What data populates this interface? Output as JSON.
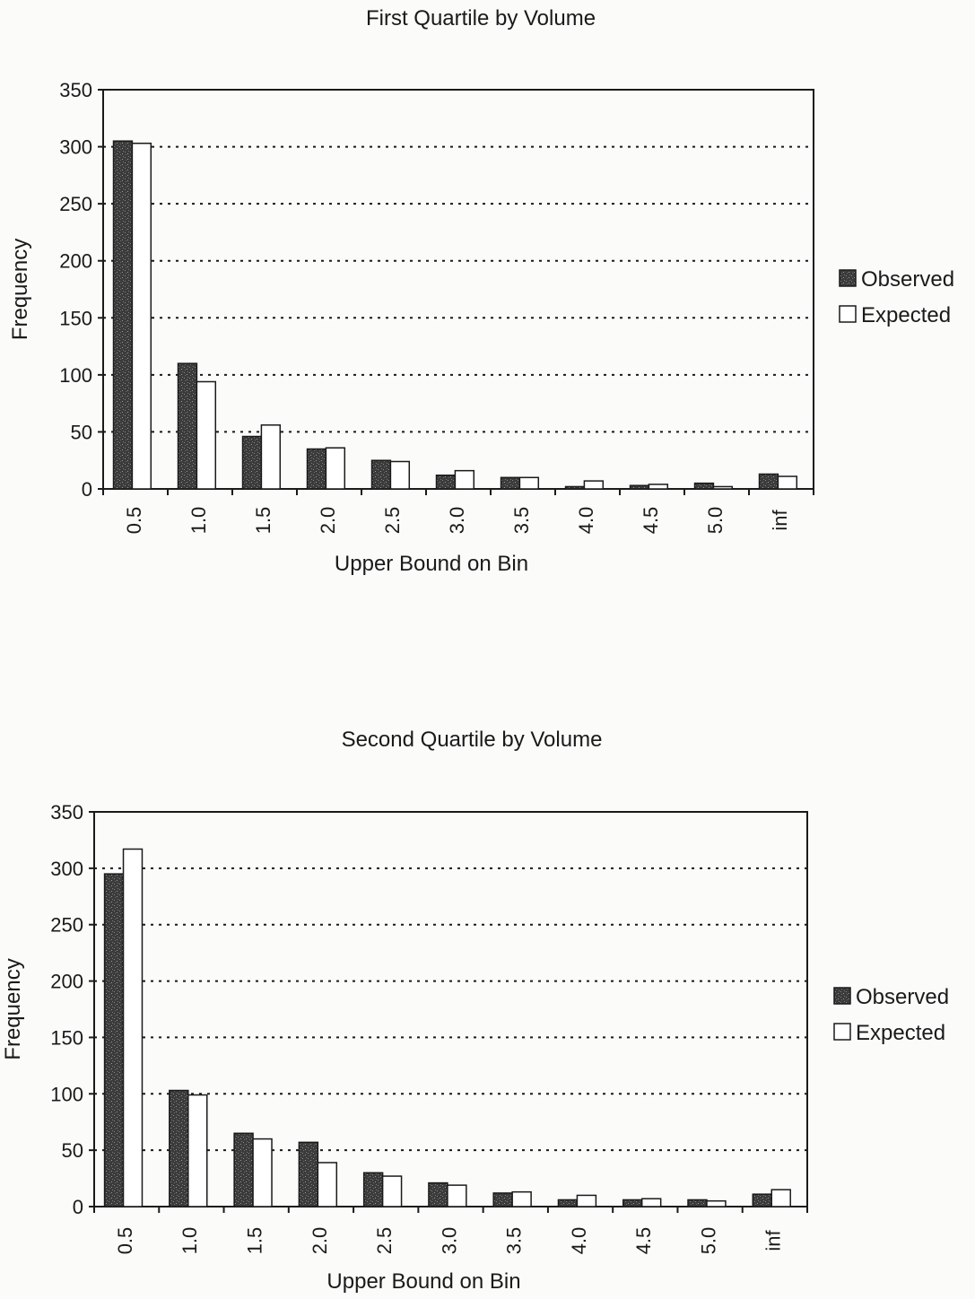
{
  "chart_data": [
    {
      "type": "bar",
      "title": "First Quartile by Volume",
      "xlabel": "Upper Bound on Bin",
      "ylabel": "Frequency",
      "ylim": [
        0,
        350
      ],
      "yticks": [
        0,
        50,
        100,
        150,
        200,
        250,
        300,
        350
      ],
      "grid": "horizontal dotted",
      "legend_position": "right",
      "categories": [
        "0.5",
        "1.0",
        "1.5",
        "2.0",
        "2.5",
        "3.0",
        "3.5",
        "4.0",
        "4.5",
        "5.0",
        "inf"
      ],
      "series": [
        {
          "name": "Observed",
          "values": [
            305,
            110,
            46,
            35,
            25,
            12,
            10,
            2,
            3,
            5,
            13
          ],
          "color": "#3a3a3a"
        },
        {
          "name": "Expected",
          "values": [
            303,
            94,
            56,
            36,
            24,
            16,
            10,
            7,
            4,
            2,
            11
          ],
          "color": "#ffffff"
        }
      ]
    },
    {
      "type": "bar",
      "title": "Second Quartile by Volume",
      "xlabel": "Upper Bound on Bin",
      "ylabel": "Frequency",
      "ylim": [
        0,
        350
      ],
      "yticks": [
        0,
        50,
        100,
        150,
        200,
        250,
        300,
        350
      ],
      "grid": "horizontal dotted",
      "legend_position": "right",
      "categories": [
        "0.5",
        "1.0",
        "1.5",
        "2.0",
        "2.5",
        "3.0",
        "3.5",
        "4.0",
        "4.5",
        "5.0",
        "inf"
      ],
      "series": [
        {
          "name": "Observed",
          "values": [
            295,
            103,
            65,
            57,
            30,
            21,
            12,
            6,
            6,
            6,
            11
          ],
          "color": "#3a3a3a"
        },
        {
          "name": "Expected",
          "values": [
            317,
            99,
            60,
            39,
            27,
            19,
            13,
            10,
            7,
            5,
            15
          ],
          "color": "#ffffff"
        }
      ]
    }
  ]
}
